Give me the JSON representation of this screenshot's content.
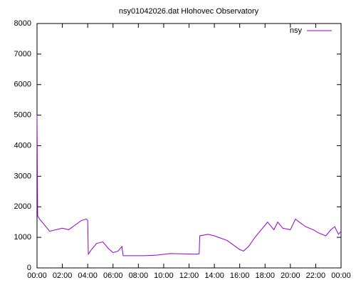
{
  "chart_data": {
    "type": "line",
    "title": "nsy01042026.dat Hlohovec Observatory",
    "x": [
      0,
      0.05,
      0.2,
      0.5,
      1,
      1.5,
      2,
      2.5,
      3,
      3.5,
      3.9,
      4.0,
      4.05,
      4.3,
      4.7,
      5.2,
      5.6,
      6.0,
      6.4,
      6.7,
      6.8,
      7.5,
      8.5,
      9.5,
      10.5,
      11.5,
      12.5,
      12.8,
      12.85,
      13.5,
      14,
      15,
      15.5,
      16,
      16.3,
      16.7,
      17.2,
      17.8,
      18.2,
      18.7,
      19,
      19.4,
      20,
      20.4,
      20.7,
      21.2,
      21.8,
      22.2,
      22.8,
      23.2,
      23.5,
      23.8,
      24
    ],
    "series": [
      {
        "name": "nsy",
        "color": "#9400d3",
        "values": [
          5000,
          1700,
          1600,
          1450,
          1200,
          1250,
          1300,
          1250,
          1400,
          1550,
          1600,
          1550,
          450,
          600,
          800,
          850,
          650,
          500,
          550,
          700,
          400,
          400,
          400,
          420,
          470,
          460,
          450,
          460,
          1050,
          1100,
          1050,
          900,
          750,
          600,
          550,
          700,
          1000,
          1300,
          1500,
          1250,
          1500,
          1300,
          1250,
          1600,
          1500,
          1350,
          1250,
          1150,
          1050,
          1250,
          1350,
          1100,
          1200
        ]
      }
    ],
    "xlim": [
      0,
      24
    ],
    "xticks": [
      {
        "value": 0,
        "label": "00:00"
      },
      {
        "value": 2,
        "label": "02:00"
      },
      {
        "value": 4,
        "label": "04:00"
      },
      {
        "value": 6,
        "label": "06:00"
      },
      {
        "value": 8,
        "label": "08:00"
      },
      {
        "value": 10,
        "label": "10:00"
      },
      {
        "value": 12,
        "label": "12:00"
      },
      {
        "value": 14,
        "label": "14:00"
      },
      {
        "value": 16,
        "label": "16:00"
      },
      {
        "value": 18,
        "label": "18:00"
      },
      {
        "value": 20,
        "label": "20:00"
      },
      {
        "value": 22,
        "label": "22:00"
      },
      {
        "value": 24,
        "label": "00:00"
      }
    ],
    "ylim": [
      0,
      8000
    ],
    "yticks": [
      0,
      1000,
      2000,
      3000,
      4000,
      5000,
      6000,
      7000,
      8000
    ],
    "legend": "top-right"
  }
}
